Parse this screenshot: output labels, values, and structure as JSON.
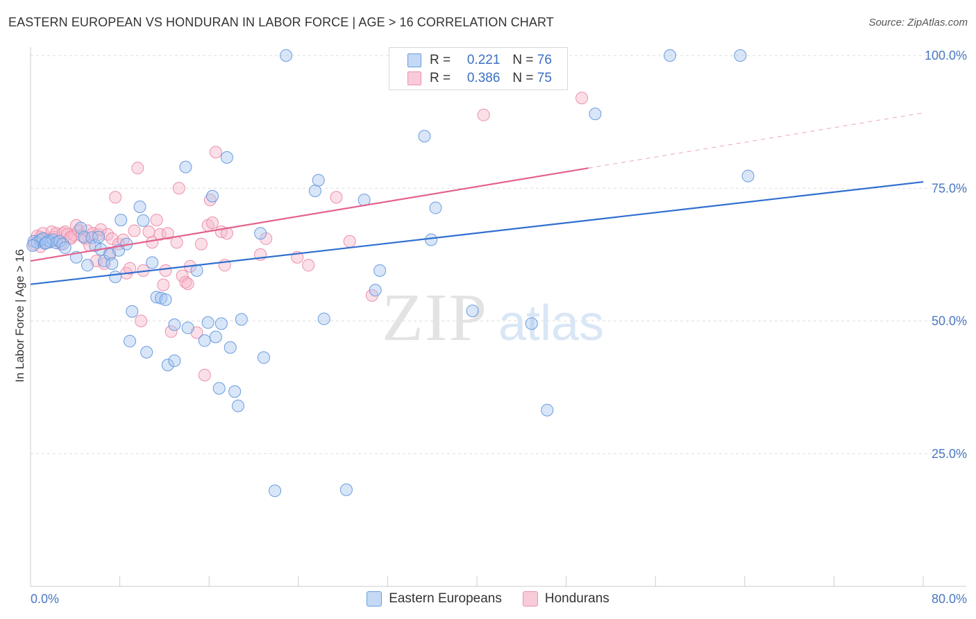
{
  "header": {
    "title": "EASTERN EUROPEAN VS HONDURAN IN LABOR FORCE | AGE > 16 CORRELATION CHART",
    "source": "Source: ZipAtlas.com"
  },
  "legend": {
    "r_label": "R =",
    "n_label": "N =",
    "rows": [
      {
        "r": "0.221",
        "n": "76"
      },
      {
        "r": "0.386",
        "n": "75"
      }
    ]
  },
  "watermark": {
    "zip": "ZIP",
    "atlas": "atlas"
  },
  "colors": {
    "eastern_fill": "#a9c7f0",
    "eastern_stroke": "#6a9be0",
    "eastern_line": "#2f6fd0",
    "honduran_fill": "#f6b8ca",
    "honduran_stroke": "#ec8fac",
    "honduran_line": "#e2628e",
    "tick_text": "#4a78c2",
    "grid": "#dddddd"
  },
  "chart_data": {
    "type": "scatter",
    "title": "EASTERN EUROPEAN VS HONDURAN IN LABOR FORCE | AGE > 16 CORRELATION CHART",
    "xlabel": "",
    "ylabel": "In Labor Force | Age > 16",
    "xlim": [
      0,
      80
    ],
    "ylim": [
      0,
      105
    ],
    "x_tick_labels": [
      "0.0%",
      "80.0%"
    ],
    "y_ticks": [
      25,
      50,
      75,
      100
    ],
    "y_tick_labels": [
      "25.0%",
      "50.0%",
      "75.0%",
      "100.0%"
    ],
    "grid": true,
    "legend_position": "top-center",
    "series": [
      {
        "name": "Eastern Europeans",
        "r": 0.221,
        "n": 76,
        "trend": {
          "x": [
            0,
            80
          ],
          "y": [
            56.9,
            76.2
          ]
        },
        "points": [
          [
            0.3,
            65.0
          ],
          [
            0.6,
            64.8
          ],
          [
            0.9,
            65.2
          ],
          [
            1.1,
            65.5
          ],
          [
            1.3,
            64.6
          ],
          [
            1.6,
            65.1
          ],
          [
            1.8,
            64.9
          ],
          [
            2.0,
            65.3
          ],
          [
            2.3,
            64.7
          ],
          [
            2.6,
            65.0
          ],
          [
            2.9,
            64.5
          ],
          [
            3.1,
            63.8
          ],
          [
            4.1,
            62.0
          ],
          [
            4.5,
            67.5
          ],
          [
            4.8,
            65.8
          ],
          [
            5.1,
            60.5
          ],
          [
            5.5,
            65.7
          ],
          [
            5.8,
            64.2
          ],
          [
            6.1,
            65.8
          ],
          [
            6.3,
            63.5
          ],
          [
            6.6,
            61.3
          ],
          [
            7.1,
            62.5
          ],
          [
            7.3,
            60.8
          ],
          [
            7.6,
            58.3
          ],
          [
            7.9,
            63.3
          ],
          [
            8.1,
            69.0
          ],
          [
            8.6,
            64.5
          ],
          [
            8.9,
            46.2
          ],
          [
            9.1,
            51.8
          ],
          [
            9.8,
            71.5
          ],
          [
            10.1,
            68.9
          ],
          [
            10.4,
            44.1
          ],
          [
            10.9,
            61.0
          ],
          [
            11.3,
            54.5
          ],
          [
            11.7,
            54.3
          ],
          [
            12.1,
            54.0
          ],
          [
            12.3,
            41.7
          ],
          [
            12.9,
            42.5
          ],
          [
            12.9,
            49.3
          ],
          [
            13.9,
            79.0
          ],
          [
            14.1,
            48.7
          ],
          [
            14.9,
            59.5
          ],
          [
            15.6,
            46.3
          ],
          [
            15.9,
            49.7
          ],
          [
            16.3,
            73.5
          ],
          [
            16.9,
            37.3
          ],
          [
            16.6,
            47.0
          ],
          [
            17.1,
            49.5
          ],
          [
            17.6,
            80.8
          ],
          [
            17.9,
            45.0
          ],
          [
            18.3,
            36.7
          ],
          [
            18.6,
            34.0
          ],
          [
            18.9,
            50.3
          ],
          [
            20.6,
            66.5
          ],
          [
            20.9,
            43.1
          ],
          [
            21.9,
            18.0
          ],
          [
            22.9,
            100.0
          ],
          [
            25.5,
            74.5
          ],
          [
            25.8,
            76.5
          ],
          [
            26.3,
            50.4
          ],
          [
            28.3,
            18.2
          ],
          [
            29.9,
            72.8
          ],
          [
            30.9,
            55.8
          ],
          [
            31.3,
            59.5
          ],
          [
            35.3,
            84.8
          ],
          [
            35.9,
            65.3
          ],
          [
            36.3,
            71.3
          ],
          [
            39.6,
            51.9
          ],
          [
            44.9,
            49.5
          ],
          [
            46.3,
            33.2
          ],
          [
            50.6,
            89.0
          ],
          [
            57.3,
            100.0
          ],
          [
            63.6,
            100.0
          ],
          [
            64.3,
            77.3
          ],
          [
            0.2,
            64.2
          ],
          [
            1.4,
            64.7
          ]
        ]
      },
      {
        "name": "Hondurans",
        "r": 0.386,
        "n": 75,
        "trend": {
          "x": [
            0,
            50
          ],
          "y": [
            61.3,
            78.8
          ]
        },
        "trend_dashed": {
          "x": [
            50,
            80
          ],
          "y": [
            78.8,
            89.2
          ]
        },
        "points": [
          [
            0.3,
            64.5
          ],
          [
            0.6,
            66.0
          ],
          [
            0.9,
            65.8
          ],
          [
            1.1,
            66.5
          ],
          [
            1.3,
            65.5
          ],
          [
            1.6,
            64.8
          ],
          [
            1.9,
            66.8
          ],
          [
            2.1,
            65.8
          ],
          [
            2.3,
            66.5
          ],
          [
            2.6,
            65.0
          ],
          [
            2.9,
            66.5
          ],
          [
            3.1,
            66.8
          ],
          [
            3.3,
            66.3
          ],
          [
            3.6,
            65.5
          ],
          [
            3.9,
            66.2
          ],
          [
            4.1,
            68.0
          ],
          [
            4.3,
            67.0
          ],
          [
            4.6,
            66.0
          ],
          [
            4.9,
            65.5
          ],
          [
            5.1,
            67.0
          ],
          [
            5.3,
            64.2
          ],
          [
            5.6,
            66.5
          ],
          [
            5.9,
            61.3
          ],
          [
            6.1,
            66.3
          ],
          [
            6.3,
            67.2
          ],
          [
            6.6,
            60.8
          ],
          [
            6.9,
            66.3
          ],
          [
            7.1,
            62.8
          ],
          [
            7.3,
            65.5
          ],
          [
            7.6,
            73.3
          ],
          [
            7.9,
            64.5
          ],
          [
            8.3,
            65.3
          ],
          [
            8.6,
            59.0
          ],
          [
            8.9,
            59.9
          ],
          [
            9.3,
            67.0
          ],
          [
            9.6,
            78.8
          ],
          [
            9.9,
            50.0
          ],
          [
            10.1,
            59.5
          ],
          [
            10.6,
            66.8
          ],
          [
            10.9,
            64.8
          ],
          [
            11.3,
            69.0
          ],
          [
            11.6,
            66.3
          ],
          [
            11.9,
            56.8
          ],
          [
            12.1,
            59.5
          ],
          [
            12.3,
            66.5
          ],
          [
            12.6,
            48.0
          ],
          [
            13.1,
            64.8
          ],
          [
            13.3,
            75.0
          ],
          [
            13.6,
            58.5
          ],
          [
            13.9,
            57.3
          ],
          [
            14.1,
            57.0
          ],
          [
            14.3,
            60.3
          ],
          [
            14.9,
            47.8
          ],
          [
            15.3,
            64.5
          ],
          [
            15.6,
            39.8
          ],
          [
            15.9,
            68.0
          ],
          [
            16.1,
            72.8
          ],
          [
            16.3,
            68.5
          ],
          [
            16.6,
            81.8
          ],
          [
            17.1,
            66.8
          ],
          [
            17.4,
            60.5
          ],
          [
            17.6,
            66.5
          ],
          [
            20.6,
            62.5
          ],
          [
            21.1,
            65.5
          ],
          [
            23.9,
            62.0
          ],
          [
            24.9,
            60.5
          ],
          [
            27.4,
            73.3
          ],
          [
            28.6,
            65.0
          ],
          [
            30.6,
            54.8
          ],
          [
            40.6,
            88.8
          ],
          [
            41.9,
            100.0
          ],
          [
            49.4,
            92.0
          ],
          [
            0.9,
            64.0
          ],
          [
            2.7,
            64.5
          ],
          [
            3.6,
            65.8
          ]
        ]
      }
    ]
  }
}
